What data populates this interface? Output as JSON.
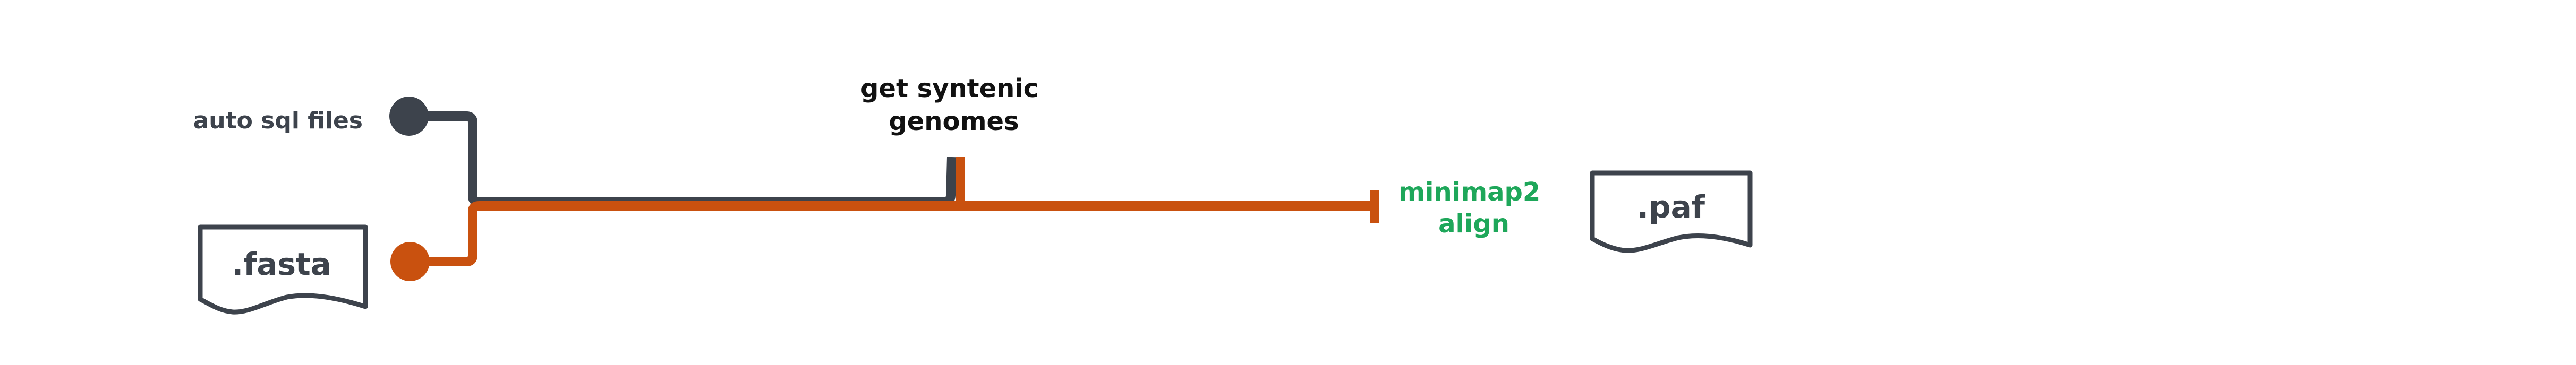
{
  "colors": {
    "gray_line": "#3d434c",
    "orange_line": "#c9510f",
    "green_text": "#1ea75a",
    "dark_text": "#3d434c",
    "black_text": "#111111"
  },
  "inputs": [
    {
      "label": "auto sql files",
      "line": "gray"
    },
    {
      "label": ".fasta",
      "line": "orange",
      "icon": "document-icon"
    }
  ],
  "steps": [
    {
      "label_line1": "get syntenic",
      "label_line2": "genomes"
    },
    {
      "label_line1": "minimap2",
      "label_line2": "align"
    }
  ],
  "outputs": [
    {
      "label": ".paf",
      "icon": "document-icon"
    }
  ]
}
